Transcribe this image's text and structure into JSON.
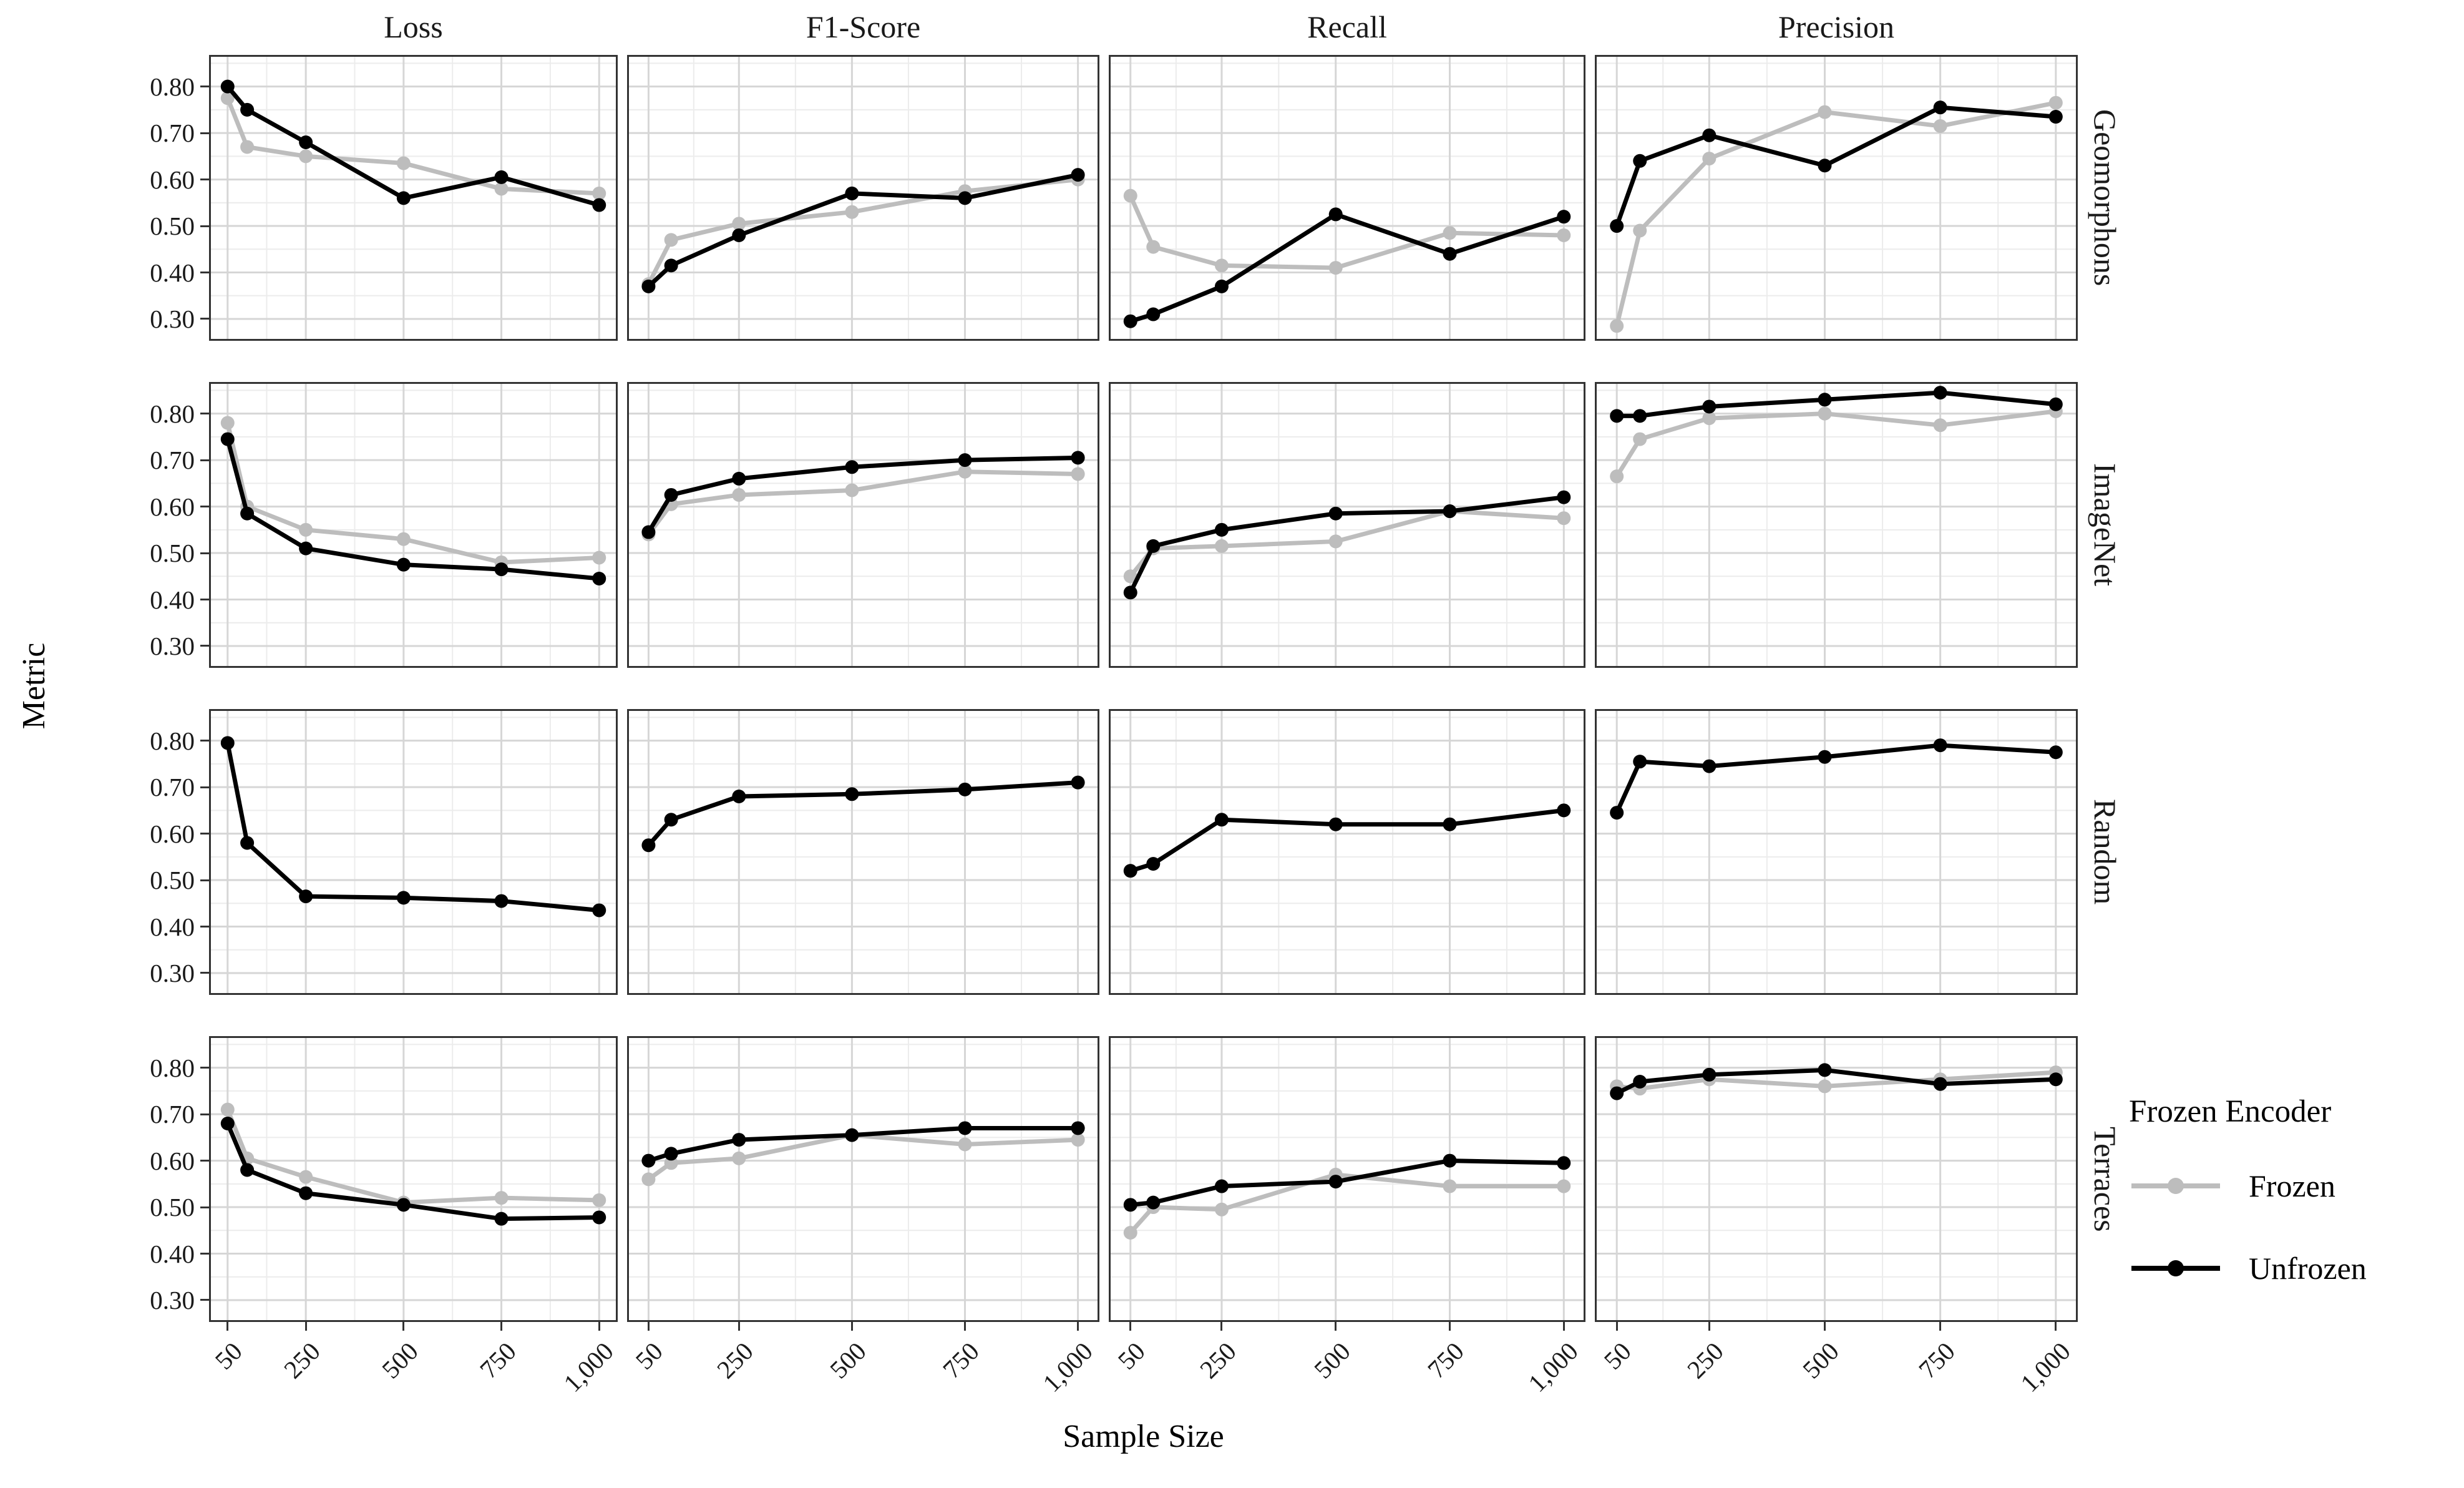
{
  "figure": {
    "y_axis_title": "Metric",
    "x_axis_title": "Sample Size",
    "col_titles": [
      "Loss",
      "F1-Score",
      "Recall",
      "Precision"
    ],
    "row_titles": [
      "Geomorphons",
      "ImageNet",
      "Random",
      "Terraces"
    ],
    "y_tick_labels": [
      "0.80",
      "0.70",
      "0.60",
      "0.50",
      "0.40",
      "0.30"
    ],
    "x_tick_labels": [
      "50",
      "250",
      "500",
      "750",
      "1,000"
    ],
    "legend": {
      "title": "Frozen Encoder",
      "items": [
        {
          "label": "Frozen",
          "color": "#bdbdbd"
        },
        {
          "label": "Unfrozen",
          "color": "#000000"
        }
      ]
    }
  },
  "chart_data": {
    "type": "line",
    "title": "",
    "xlabel": "Sample Size",
    "ylabel": "Metric",
    "facet_columns": [
      "Loss",
      "F1-Score",
      "Recall",
      "Precision"
    ],
    "facet_rows": [
      "Geomorphons",
      "ImageNet",
      "Random",
      "Terraces"
    ],
    "x": [
      50,
      100,
      250,
      500,
      750,
      1000
    ],
    "x_ticks": [
      50,
      250,
      500,
      750,
      1000
    ],
    "y_ticks": [
      0.8,
      0.7,
      0.6,
      0.5,
      0.4,
      0.3
    ],
    "y_minor_gridlines": [
      0.85,
      0.75,
      0.65,
      0.55,
      0.45,
      0.35
    ],
    "x_minor_gridlines": [
      150,
      375,
      625,
      875
    ],
    "ylim": [
      0.253,
      0.868
    ],
    "xlim": [
      2.5,
      1047.5
    ],
    "grid": true,
    "legend_position": "right",
    "series_colors": {
      "Frozen": "#bdbdbd",
      "Unfrozen": "#000000"
    },
    "panels": {
      "Geomorphons": {
        "Loss": {
          "Frozen": [
            0.775,
            0.67,
            0.65,
            0.635,
            0.58,
            0.57
          ],
          "Unfrozen": [
            0.8,
            0.75,
            0.68,
            0.56,
            0.605,
            0.545
          ]
        },
        "F1-Score": {
          "Frozen": [
            0.375,
            0.47,
            0.505,
            0.53,
            0.575,
            0.6
          ],
          "Unfrozen": [
            0.37,
            0.415,
            0.48,
            0.57,
            0.56,
            0.61
          ]
        },
        "Recall": {
          "Frozen": [
            0.565,
            0.455,
            0.415,
            0.41,
            0.485,
            0.48
          ],
          "Unfrozen": [
            0.295,
            0.31,
            0.37,
            0.525,
            0.44,
            0.52
          ]
        },
        "Precision": {
          "Frozen": [
            0.285,
            0.49,
            0.645,
            0.745,
            0.715,
            0.765
          ],
          "Unfrozen": [
            0.5,
            0.64,
            0.695,
            0.63,
            0.755,
            0.735
          ]
        }
      },
      "ImageNet": {
        "Loss": {
          "Frozen": [
            0.78,
            0.6,
            0.55,
            0.53,
            0.48,
            0.49
          ],
          "Unfrozen": [
            0.745,
            0.585,
            0.51,
            0.475,
            0.465,
            0.445
          ]
        },
        "F1-Score": {
          "Frozen": [
            0.54,
            0.605,
            0.625,
            0.635,
            0.675,
            0.67
          ],
          "Unfrozen": [
            0.545,
            0.625,
            0.66,
            0.685,
            0.7,
            0.705
          ]
        },
        "Recall": {
          "Frozen": [
            0.45,
            0.51,
            0.515,
            0.525,
            0.59,
            0.575
          ],
          "Unfrozen": [
            0.415,
            0.515,
            0.55,
            0.585,
            0.59,
            0.62
          ]
        },
        "Precision": {
          "Frozen": [
            0.665,
            0.745,
            0.79,
            0.8,
            0.775,
            0.805
          ],
          "Unfrozen": [
            0.795,
            0.795,
            0.815,
            0.83,
            0.845,
            0.82
          ]
        }
      },
      "Random": {
        "Loss": {
          "Frozen": null,
          "Unfrozen": [
            0.795,
            0.58,
            0.465,
            0.462,
            0.455,
            0.435
          ]
        },
        "F1-Score": {
          "Frozen": null,
          "Unfrozen": [
            0.575,
            0.63,
            0.68,
            0.685,
            0.695,
            0.71
          ]
        },
        "Recall": {
          "Frozen": null,
          "Unfrozen": [
            0.52,
            0.535,
            0.63,
            0.62,
            0.62,
            0.65
          ]
        },
        "Precision": {
          "Frozen": null,
          "Unfrozen": [
            0.645,
            0.755,
            0.745,
            0.765,
            0.79,
            0.775
          ]
        }
      },
      "Terraces": {
        "Loss": {
          "Frozen": [
            0.71,
            0.605,
            0.565,
            0.51,
            0.52,
            0.515
          ],
          "Unfrozen": [
            0.68,
            0.58,
            0.53,
            0.505,
            0.475,
            0.478
          ]
        },
        "F1-Score": {
          "Frozen": [
            0.56,
            0.595,
            0.605,
            0.655,
            0.635,
            0.645
          ],
          "Unfrozen": [
            0.6,
            0.615,
            0.645,
            0.655,
            0.67,
            0.67
          ]
        },
        "Recall": {
          "Frozen": [
            0.445,
            0.5,
            0.495,
            0.57,
            0.545,
            0.545
          ],
          "Unfrozen": [
            0.505,
            0.51,
            0.545,
            0.555,
            0.6,
            0.595
          ]
        },
        "Precision": {
          "Frozen": [
            0.76,
            0.755,
            0.775,
            0.76,
            0.775,
            0.79
          ],
          "Unfrozen": [
            0.745,
            0.77,
            0.785,
            0.795,
            0.765,
            0.775
          ]
        }
      }
    }
  }
}
